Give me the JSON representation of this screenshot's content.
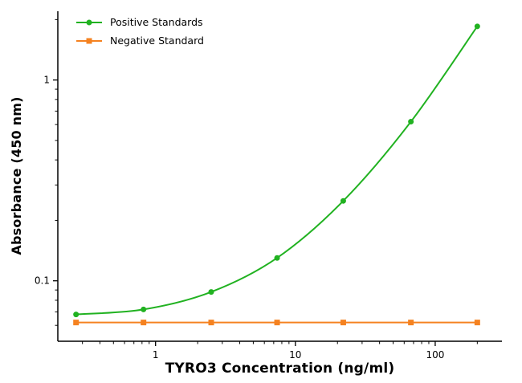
{
  "chart": {
    "title": "",
    "xlabel": "TYRO3 Concentration (ng/ml)",
    "ylabel": "Absorbance (450 nm)",
    "axis_color": "#000000",
    "background_color": "#ffffff",
    "accent_colors": {
      "positive_green": "#21b221",
      "negative_orange": "#f58220"
    }
  },
  "chart_data": {
    "type": "line",
    "x_scale": "log",
    "y_scale": "log",
    "xlim": [
      0.2,
      300
    ],
    "ylim": [
      0.05,
      2.2
    ],
    "x_ticks": [
      "1",
      "10",
      "100"
    ],
    "y_ticks": [
      "0.1",
      "1"
    ],
    "grid": false,
    "legend_position": "top-left",
    "series": [
      {
        "name": "Positive Standards",
        "color": "#21b221",
        "marker": "circle",
        "x": [
          0.27,
          0.82,
          2.5,
          7.4,
          22,
          67,
          200
        ],
        "y": [
          0.068,
          0.072,
          0.088,
          0.13,
          0.25,
          0.62,
          1.85
        ]
      },
      {
        "name": "Negative Standard",
        "color": "#f58220",
        "marker": "square",
        "x": [
          0.27,
          0.82,
          2.5,
          7.4,
          22,
          67,
          200
        ],
        "y": [
          0.062,
          0.062,
          0.062,
          0.062,
          0.062,
          0.062,
          0.062
        ]
      }
    ]
  }
}
